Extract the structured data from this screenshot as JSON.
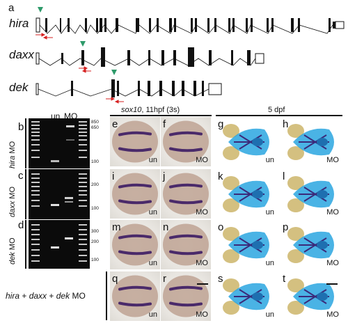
{
  "panel_a": {
    "letter": "a",
    "genes": [
      {
        "name": "hira"
      },
      {
        "name": "daxx"
      },
      {
        "name": "dek"
      }
    ]
  },
  "gels": {
    "lane_labels": [
      "un",
      "MO"
    ],
    "rows": [
      {
        "letter": "b",
        "gene": "hira",
        "suffix": " MO",
        "ladder": [
          "850",
          "650",
          "100"
        ]
      },
      {
        "letter": "c",
        "gene": "daxx",
        "suffix": " MO",
        "ladder": [
          "200",
          "100"
        ]
      },
      {
        "letter": "d",
        "gene": "dek",
        "suffix": " MO",
        "ladder": [
          "300",
          "200",
          "100"
        ]
      }
    ]
  },
  "combined_label": {
    "g1": "hira",
    "sep1": " + ",
    "g2": "daxx",
    "sep2": " + ",
    "g3": "dek",
    "suffix": " MO"
  },
  "headers": {
    "ish_gene": "sox10",
    "ish_rest": ", 11hpf (3s)",
    "cartilage": "5 dpf"
  },
  "panels": [
    {
      "letter": "e",
      "label": "un"
    },
    {
      "letter": "f",
      "label": "MO"
    },
    {
      "letter": "g",
      "label": "un"
    },
    {
      "letter": "h",
      "label": "MO"
    },
    {
      "letter": "i",
      "label": "un"
    },
    {
      "letter": "j",
      "label": "MO"
    },
    {
      "letter": "k",
      "label": "un"
    },
    {
      "letter": "l",
      "label": "MO"
    },
    {
      "letter": "m",
      "label": "un"
    },
    {
      "letter": "n",
      "label": "MO"
    },
    {
      "letter": "o",
      "label": "un"
    },
    {
      "letter": "p",
      "label": "MO"
    },
    {
      "letter": "q",
      "label": "un"
    },
    {
      "letter": "r",
      "label": "MO"
    },
    {
      "letter": "s",
      "label": "un"
    },
    {
      "letter": "t",
      "label": "MO"
    }
  ],
  "colors": {
    "marker_arrowhead": "#2e9a6a",
    "primer_arrow": "#d62020",
    "embryo_stain": "#4a2a6a",
    "alcian_blue": "#2aa6e0"
  }
}
